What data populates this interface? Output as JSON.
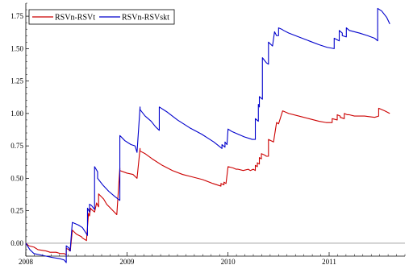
{
  "chart_data": {
    "type": "line",
    "title": "",
    "xlabel": "",
    "ylabel": "",
    "xlim": [
      2008.0,
      2011.75
    ],
    "ylim": [
      -0.1,
      1.85
    ],
    "x_ticks": [
      2008,
      2009,
      2010,
      2011
    ],
    "y_ticks": [
      0.0,
      0.25,
      0.5,
      0.75,
      1.0,
      1.25,
      1.5,
      1.75
    ],
    "y_tick_labels": [
      "0.00",
      "0.25",
      "0.50",
      "0.75",
      "1.00",
      "1.25",
      "1.50",
      "1.75"
    ],
    "grid": false,
    "legend_position": "top-left",
    "baseline": 0,
    "series": [
      {
        "name": "RSVn-RSVt",
        "color": "#cc0000",
        "x": [
          2008.0,
          2008.03,
          2008.08,
          2008.12,
          2008.2,
          2008.24,
          2008.3,
          2008.34,
          2008.38,
          2008.4,
          2008.4,
          2008.43,
          2008.43,
          2008.44,
          2008.44,
          2008.46,
          2008.5,
          2008.55,
          2008.56,
          2008.6,
          2008.62,
          2008.63,
          2008.64,
          2008.65,
          2008.68,
          2008.7,
          2008.72,
          2008.72,
          2008.77,
          2008.8,
          2008.85,
          2008.9,
          2008.93,
          2008.93,
          2009.0,
          2009.06,
          2009.1,
          2009.13,
          2009.13,
          2009.18,
          2009.25,
          2009.35,
          2009.45,
          2009.55,
          2009.65,
          2009.75,
          2009.85,
          2009.93,
          2009.93,
          2009.96,
          2009.96,
          2009.98,
          2010.0,
          2010.05,
          2010.08,
          2010.1,
          2010.15,
          2010.2,
          2010.22,
          2010.25,
          2010.27,
          2010.27,
          2010.29,
          2010.29,
          2010.31,
          2010.31,
          2010.33,
          2010.33,
          2010.36,
          2010.38,
          2010.4,
          2010.4,
          2010.45,
          2010.48,
          2010.5,
          2010.54,
          2010.6,
          2010.7,
          2010.8,
          2010.9,
          2010.97,
          2011.03,
          2011.03,
          2011.08,
          2011.08,
          2011.11,
          2011.11,
          2011.15,
          2011.15,
          2011.18,
          2011.2,
          2011.25,
          2011.35,
          2011.45,
          2011.49,
          2011.49,
          2011.55,
          2011.6
        ],
        "y": [
          0.0,
          -0.02,
          -0.03,
          -0.05,
          -0.06,
          -0.07,
          -0.07,
          -0.08,
          -0.08,
          -0.09,
          -0.04,
          -0.05,
          -0.06,
          -0.05,
          -0.06,
          0.1,
          0.07,
          0.05,
          0.04,
          0.02,
          0.23,
          0.21,
          0.27,
          0.26,
          0.24,
          0.31,
          0.28,
          0.38,
          0.34,
          0.3,
          0.26,
          0.22,
          0.58,
          0.56,
          0.54,
          0.53,
          0.5,
          0.73,
          0.71,
          0.69,
          0.65,
          0.6,
          0.56,
          0.53,
          0.51,
          0.49,
          0.46,
          0.44,
          0.46,
          0.45,
          0.47,
          0.46,
          0.59,
          0.58,
          0.57,
          0.57,
          0.56,
          0.57,
          0.56,
          0.57,
          0.56,
          0.6,
          0.59,
          0.62,
          0.61,
          0.66,
          0.65,
          0.69,
          0.68,
          0.67,
          0.67,
          0.8,
          0.78,
          0.93,
          0.92,
          1.02,
          1.0,
          0.98,
          0.96,
          0.94,
          0.93,
          0.93,
          0.96,
          0.95,
          0.99,
          0.98,
          0.97,
          0.96,
          1.0,
          0.99,
          0.99,
          0.98,
          0.98,
          0.97,
          0.98,
          1.04,
          1.02,
          1.0
        ]
      },
      {
        "name": "RSVn-RSVskt",
        "color": "#0000cc",
        "x": [
          2008.0,
          2008.04,
          2008.08,
          2008.14,
          2008.2,
          2008.26,
          2008.34,
          2008.38,
          2008.4,
          2008.4,
          2008.43,
          2008.43,
          2008.44,
          2008.44,
          2008.46,
          2008.52,
          2008.56,
          2008.61,
          2008.61,
          2008.63,
          2008.63,
          2008.65,
          2008.68,
          2008.68,
          2008.71,
          2008.71,
          2008.76,
          2008.82,
          2008.88,
          2008.93,
          2008.93,
          2008.98,
          2009.04,
          2009.08,
          2009.1,
          2009.13,
          2009.13,
          2009.18,
          2009.24,
          2009.28,
          2009.32,
          2009.32,
          2009.4,
          2009.5,
          2009.62,
          2009.74,
          2009.86,
          2009.94,
          2009.94,
          2009.97,
          2009.97,
          2009.99,
          2010.0,
          2010.04,
          2010.1,
          2010.16,
          2010.24,
          2010.26,
          2010.27,
          2010.27,
          2010.3,
          2010.3,
          2010.31,
          2010.31,
          2010.34,
          2010.34,
          2010.36,
          2010.38,
          2010.4,
          2010.4,
          2010.44,
          2010.46,
          2010.48,
          2010.5,
          2010.5,
          2010.53,
          2010.55,
          2010.6,
          2010.7,
          2010.8,
          2010.9,
          2010.98,
          2011.05,
          2011.05,
          2011.1,
          2011.1,
          2011.13,
          2011.13,
          2011.17,
          2011.17,
          2011.2,
          2011.25,
          2011.3,
          2011.38,
          2011.45,
          2011.48,
          2011.48,
          2011.52,
          2011.57,
          2011.6
        ],
        "y": [
          0.0,
          -0.05,
          -0.08,
          -0.09,
          -0.1,
          -0.11,
          -0.12,
          -0.13,
          -0.15,
          -0.02,
          -0.04,
          -0.05,
          -0.06,
          -0.04,
          0.16,
          0.14,
          0.12,
          0.06,
          0.27,
          0.24,
          0.3,
          0.29,
          0.26,
          0.59,
          0.55,
          0.5,
          0.45,
          0.4,
          0.36,
          0.33,
          0.83,
          0.79,
          0.76,
          0.75,
          0.7,
          1.05,
          1.03,
          0.98,
          0.94,
          0.9,
          0.87,
          1.05,
          1.01,
          0.95,
          0.89,
          0.84,
          0.78,
          0.73,
          0.76,
          0.74,
          0.78,
          0.76,
          0.88,
          0.86,
          0.84,
          0.82,
          0.8,
          0.8,
          0.8,
          0.96,
          0.94,
          1.07,
          1.05,
          1.13,
          1.11,
          1.43,
          1.41,
          1.39,
          1.38,
          1.55,
          1.52,
          1.63,
          1.6,
          1.6,
          1.66,
          1.65,
          1.64,
          1.62,
          1.59,
          1.56,
          1.53,
          1.51,
          1.5,
          1.58,
          1.56,
          1.64,
          1.62,
          1.6,
          1.59,
          1.66,
          1.64,
          1.63,
          1.62,
          1.6,
          1.58,
          1.56,
          1.81,
          1.79,
          1.74,
          1.69
        ]
      }
    ]
  }
}
